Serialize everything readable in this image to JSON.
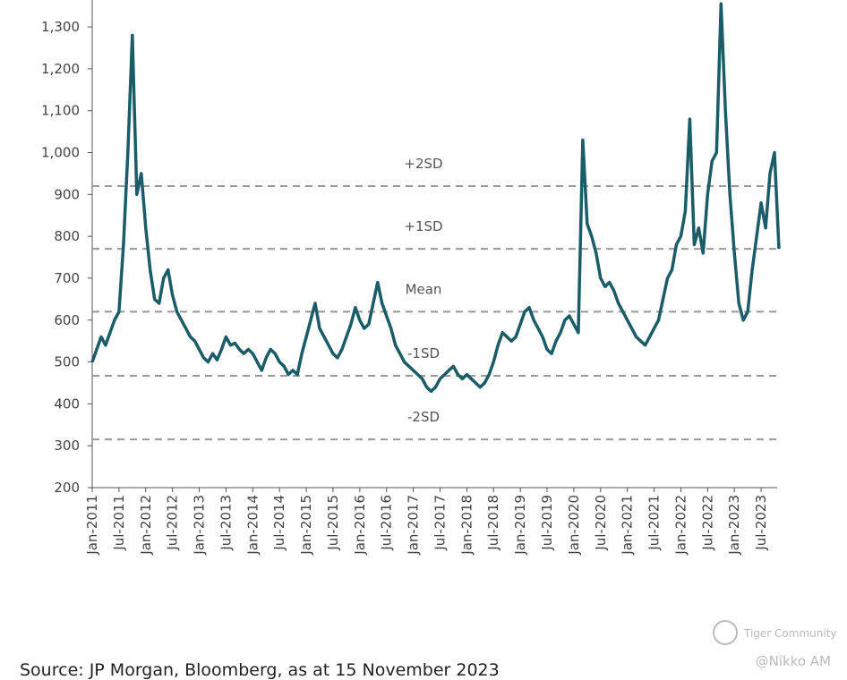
{
  "chart_data": {
    "type": "line",
    "x": [
      "2011-01",
      "2011-02",
      "2011-03",
      "2011-04",
      "2011-05",
      "2011-06",
      "2011-07",
      "2011-08",
      "2011-09",
      "2011-10",
      "2011-11",
      "2011-12",
      "2012-01",
      "2012-02",
      "2012-03",
      "2012-04",
      "2012-05",
      "2012-06",
      "2012-07",
      "2012-08",
      "2012-09",
      "2012-10",
      "2012-11",
      "2012-12",
      "2013-01",
      "2013-02",
      "2013-03",
      "2013-04",
      "2013-05",
      "2013-06",
      "2013-07",
      "2013-08",
      "2013-09",
      "2013-10",
      "2013-11",
      "2013-12",
      "2014-01",
      "2014-02",
      "2014-03",
      "2014-04",
      "2014-05",
      "2014-06",
      "2014-07",
      "2014-08",
      "2014-09",
      "2014-10",
      "2014-11",
      "2014-12",
      "2015-01",
      "2015-02",
      "2015-03",
      "2015-04",
      "2015-05",
      "2015-06",
      "2015-07",
      "2015-08",
      "2015-09",
      "2015-10",
      "2015-11",
      "2015-12",
      "2016-01",
      "2016-02",
      "2016-03",
      "2016-04",
      "2016-05",
      "2016-06",
      "2016-07",
      "2016-08",
      "2016-09",
      "2016-10",
      "2016-11",
      "2016-12",
      "2017-01",
      "2017-02",
      "2017-03",
      "2017-04",
      "2017-05",
      "2017-06",
      "2017-07",
      "2017-08",
      "2017-09",
      "2017-10",
      "2017-11",
      "2017-12",
      "2018-01",
      "2018-02",
      "2018-03",
      "2018-04",
      "2018-05",
      "2018-06",
      "2018-07",
      "2018-08",
      "2018-09",
      "2018-10",
      "2018-11",
      "2018-12",
      "2019-01",
      "2019-02",
      "2019-03",
      "2019-04",
      "2019-05",
      "2019-06",
      "2019-07",
      "2019-08",
      "2019-09",
      "2019-10",
      "2019-11",
      "2019-12",
      "2020-01",
      "2020-02",
      "2020-03",
      "2020-04",
      "2020-05",
      "2020-06",
      "2020-07",
      "2020-08",
      "2020-09",
      "2020-10",
      "2020-11",
      "2020-12",
      "2021-01",
      "2021-02",
      "2021-03",
      "2021-04",
      "2021-05",
      "2021-06",
      "2021-07",
      "2021-08",
      "2021-09",
      "2021-10",
      "2021-11",
      "2021-12",
      "2022-01",
      "2022-02",
      "2022-03",
      "2022-04",
      "2022-05",
      "2022-06",
      "2022-07",
      "2022-08",
      "2022-09",
      "2022-10",
      "2022-11",
      "2022-12",
      "2023-01",
      "2023-02",
      "2023-03",
      "2023-04",
      "2023-05",
      "2023-06",
      "2023-07",
      "2023-08",
      "2023-09",
      "2023-10",
      "2023-11"
    ],
    "series": [
      {
        "color": "#1a5c68",
        "values": [
          500,
          530,
          560,
          540,
          570,
          600,
          620,
          780,
          1000,
          1280,
          900,
          950,
          820,
          720,
          650,
          640,
          700,
          720,
          660,
          620,
          600,
          580,
          560,
          550,
          530,
          510,
          500,
          520,
          505,
          530,
          560,
          540,
          545,
          530,
          520,
          530,
          520,
          500,
          480,
          510,
          530,
          520,
          500,
          490,
          470,
          480,
          470,
          520,
          560,
          600,
          640,
          580,
          560,
          540,
          520,
          510,
          530,
          560,
          590,
          630,
          600,
          580,
          590,
          640,
          690,
          640,
          610,
          580,
          540,
          520,
          500,
          490,
          480,
          470,
          460,
          440,
          430,
          440,
          460,
          470,
          480,
          490,
          470,
          460,
          470,
          460,
          450,
          440,
          450,
          470,
          500,
          540,
          570,
          560,
          550,
          560,
          590,
          620,
          630,
          600,
          580,
          560,
          530,
          520,
          550,
          570,
          600,
          610,
          590,
          570,
          1030,
          830,
          800,
          760,
          700,
          680,
          690,
          670,
          640,
          620,
          600,
          580,
          560,
          550,
          540,
          560,
          580,
          600,
          650,
          700,
          720,
          780,
          800,
          860,
          1080,
          780,
          820,
          760,
          900,
          980,
          1000,
          1355,
          1100,
          900,
          760,
          640,
          600,
          620,
          720,
          800,
          880,
          820,
          950,
          1000,
          770
        ]
      }
    ],
    "xlim": [
      "2011-01",
      "2023-11"
    ],
    "xticks": [
      {
        "value": "2011-01",
        "label": "Jan-2011"
      },
      {
        "value": "2011-07",
        "label": "Jul-2011"
      },
      {
        "value": "2012-01",
        "label": "Jan-2012"
      },
      {
        "value": "2012-07",
        "label": "Jul-2012"
      },
      {
        "value": "2013-01",
        "label": "Jan-2013"
      },
      {
        "value": "2013-07",
        "label": "Jul-2013"
      },
      {
        "value": "2014-01",
        "label": "Jan-2014"
      },
      {
        "value": "2014-07",
        "label": "Jul-2014"
      },
      {
        "value": "2015-01",
        "label": "Jan-2015"
      },
      {
        "value": "2015-07",
        "label": "Jul-2015"
      },
      {
        "value": "2016-01",
        "label": "Jan-2016"
      },
      {
        "value": "2016-07",
        "label": "Jul-2016"
      },
      {
        "value": "2017-01",
        "label": "Jan-2017"
      },
      {
        "value": "2017-07",
        "label": "Jul-2017"
      },
      {
        "value": "2018-01",
        "label": "Jan-2018"
      },
      {
        "value": "2018-07",
        "label": "Jul-2018"
      },
      {
        "value": "2019-01",
        "label": "Jan-2019"
      },
      {
        "value": "2019-07",
        "label": "Jul-2019"
      },
      {
        "value": "2020-01",
        "label": "Jan-2020"
      },
      {
        "value": "2020-07",
        "label": "Jul-2020"
      },
      {
        "value": "2021-01",
        "label": "Jan-2021"
      },
      {
        "value": "2021-07",
        "label": "Jul-2021"
      },
      {
        "value": "2022-01",
        "label": "Jan-2022"
      },
      {
        "value": "2022-07",
        "label": "Jul-2022"
      },
      {
        "value": "2023-01",
        "label": "Jan-2023"
      },
      {
        "value": "2023-07",
        "label": "Jul-2023"
      }
    ],
    "ylim": [
      200,
      1360
    ],
    "yticks": [
      200,
      300,
      400,
      500,
      600,
      700,
      800,
      900,
      {
        "value": 1000,
        "label": "1,000"
      },
      {
        "value": 1100,
        "label": "1,100"
      },
      {
        "value": 1200,
        "label": "1,200"
      },
      {
        "value": 1300,
        "label": "1,300"
      }
    ],
    "reference_lines": [
      {
        "label": "+2SD",
        "value": 920
      },
      {
        "label": "+1SD",
        "value": 770
      },
      {
        "label": "Mean",
        "value": 620
      },
      {
        "label": "-1SD",
        "value": 467
      },
      {
        "label": "-2SD",
        "value": 315
      }
    ],
    "source": "Source: JP Morgan, Bloomberg, as at 15 November 2023",
    "watermark": "Tiger Community",
    "credit": "@Nikko AM"
  }
}
